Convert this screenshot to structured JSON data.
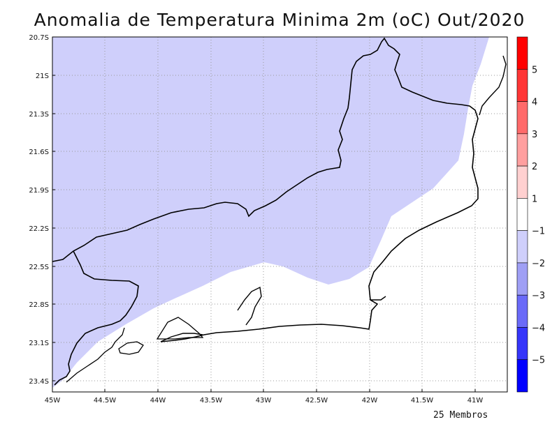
{
  "title": "Anomalia de Temperatura Minima 2m (oC) Out/2020",
  "footer": "25 Membros",
  "axes": {
    "y_ticks": [
      "20.7S",
      "21S",
      "21.3S",
      "21.6S",
      "21.9S",
      "22.2S",
      "22.5S",
      "22.8S",
      "23.1S",
      "23.4S"
    ],
    "x_ticks": [
      "45W",
      "44.5W",
      "44W",
      "43.5W",
      "43W",
      "42.5W",
      "42W",
      "41.5W",
      "41W"
    ],
    "lat_range": [
      -23.5,
      -20.7
    ],
    "lon_range": [
      -45.0,
      -40.7
    ],
    "grid": "dotted"
  },
  "colorbar": {
    "labels": [
      "5",
      "4",
      "3",
      "2",
      "1",
      "−1",
      "−2",
      "−3",
      "−4",
      "−5"
    ],
    "colors": [
      "#ff0000",
      "#ff3535",
      "#ff6a6a",
      "#ff9f9f",
      "#ffd0d0",
      "#ffffff",
      "#cfcffb",
      "#9f9ff5",
      "#6a6af8",
      "#3535fa",
      "#0000ff"
    ]
  },
  "map_features": {
    "shaded_region": "anomaly -2 to -1 (light blue)",
    "outline": "state boundary of Rio de Janeiro"
  }
}
